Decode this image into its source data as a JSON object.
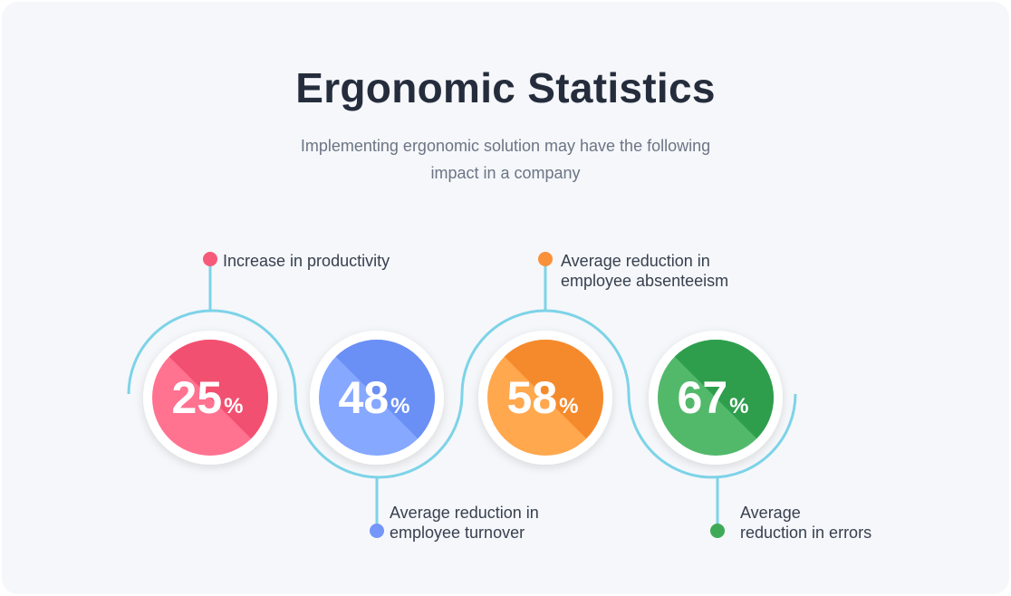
{
  "title": "Ergonomic Statistics",
  "subtitle": "Implementing ergonomic solution may have the following impact in a company",
  "colors": {
    "connector": "#7dd3e8",
    "background": "#f5f7fa",
    "text": "#38404f"
  },
  "stats": [
    {
      "value": "25",
      "unit": "%",
      "label": [
        "Increase in productivity"
      ],
      "color_light": "#ff7290",
      "color_dark": "#f25070"
    },
    {
      "value": "48",
      "unit": "%",
      "label": [
        "Average reduction in",
        "employee turnover"
      ],
      "color_light": "#86a8ff",
      "color_dark": "#6a8ff5"
    },
    {
      "value": "58",
      "unit": "%",
      "label": [
        "Average reduction in",
        "employee absenteeism"
      ],
      "color_light": "#ffa84e",
      "color_dark": "#f58a2c"
    },
    {
      "value": "67",
      "unit": "%",
      "label": [
        "Average",
        "reduction in errors"
      ],
      "color_light": "#52b96b",
      "color_dark": "#2e9e4d"
    }
  ]
}
